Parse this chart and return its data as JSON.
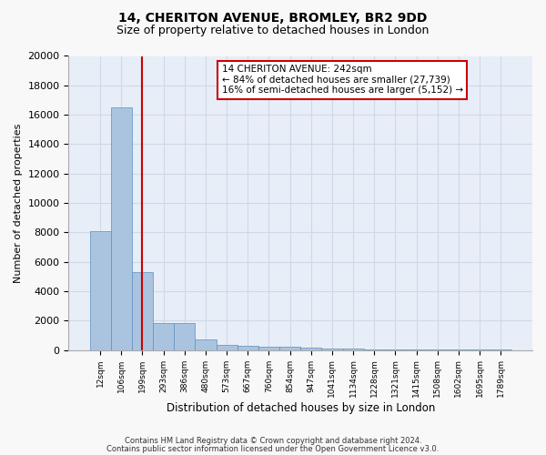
{
  "title1": "14, CHERITON AVENUE, BROMLEY, BR2 9DD",
  "title2": "Size of property relative to detached houses in London",
  "xlabel": "Distribution of detached houses by size in London",
  "ylabel": "Number of detached properties",
  "bar_values": [
    8100,
    16500,
    5300,
    1850,
    1850,
    700,
    350,
    280,
    230,
    200,
    150,
    100,
    70,
    50,
    40,
    30,
    20,
    15,
    10,
    8
  ],
  "bar_labels": [
    "12sqm",
    "106sqm",
    "199sqm",
    "293sqm",
    "386sqm",
    "480sqm",
    "573sqm",
    "667sqm",
    "760sqm",
    "854sqm",
    "947sqm",
    "1041sqm",
    "1134sqm",
    "1228sqm",
    "1321sqm",
    "1415sqm",
    "1508sqm",
    "1602sqm",
    "1695sqm",
    "1789sqm"
  ],
  "bar_color": "#aac4e0",
  "bar_edge_color": "#5a8fc0",
  "vline_x": 2,
  "vline_color": "#cc0000",
  "annotation_text": "14 CHERITON AVENUE: 242sqm\n← 84% of detached houses are smaller (27,739)\n16% of semi-detached houses are larger (5,152) →",
  "annotation_box_color": "#cc0000",
  "ylim": [
    0,
    20000
  ],
  "yticks": [
    0,
    2000,
    4000,
    6000,
    8000,
    10000,
    12000,
    14000,
    16000,
    18000,
    20000
  ],
  "grid_color": "#d0d8e8",
  "bg_color": "#e8eef8",
  "fig_bg_color": "#f8f8f8",
  "footer1": "Contains HM Land Registry data © Crown copyright and database right 2024.",
  "footer2": "Contains public sector information licensed under the Open Government Licence v3.0."
}
